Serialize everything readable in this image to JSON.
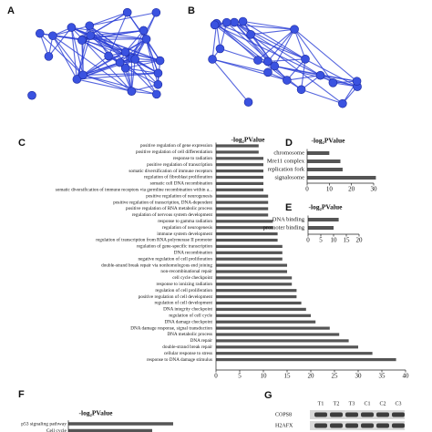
{
  "networks": [
    {
      "panel_label": "A"
    },
    {
      "panel_label": "B"
    }
  ],
  "chart_data": [
    {
      "type": "hbar",
      "panel_label": "C",
      "title": "-log₂PValue",
      "categories": [
        "positive regulation of gene expression",
        "positive regulation of cell differentiation",
        "response to radiation",
        "positive regulation of transcription",
        "somatic diversification of immune receptors",
        "regulation of fibroblast proliferation",
        "somatic cell DNA recombination",
        "somatic diversification of immune receptors via germline recombination within a...",
        "positive regulation of neurogenesis",
        "positive regulation of transcription, DNA-dependent",
        "positive regulation of RNA metabolic process",
        "regulation of nervous system development",
        "response to gamma radiation",
        "regulation of neurogenesis",
        "immune system development",
        "regulation of transcription from RNA polymerase II promoter",
        "regulation of gene-specific transcription",
        "DNA recombination",
        "negative regulation of cell proliferation",
        "double-strand break repair via nonhomologous end joining",
        "non-recombinational repair",
        "cell cycle checkpoint",
        "response to ionizing radiation",
        "regulation of cell proliferation",
        "positive regulation of cell development",
        "regulation of cell development",
        "DNA integrity checkpoint",
        "regulation of cell cycle",
        "DNA damage checkpoint",
        "DNA damage response, signal transduction",
        "DNA metabolic process",
        "DNA repair",
        "double-strand break repair",
        "cellular response to stress",
        "response to DNA damage stimulus"
      ],
      "values": [
        9,
        9,
        10,
        10,
        10,
        10,
        10,
        10,
        11,
        11,
        11,
        11,
        12,
        12,
        13,
        13,
        14,
        14,
        14,
        15,
        15,
        16,
        16,
        17,
        17,
        18,
        19,
        20,
        21,
        24,
        26,
        28,
        30,
        33,
        38
      ],
      "color": "#555555",
      "xlim": [
        0,
        40
      ],
      "xticks": [
        0,
        5,
        10,
        15,
        20,
        25,
        30,
        35,
        40
      ]
    },
    {
      "type": "hbar",
      "panel_label": "D",
      "title": "-log₂PValue",
      "categories": [
        "chromosome",
        "Mre11 complex",
        "replication fork",
        "signalosome"
      ],
      "values": [
        10,
        15,
        16,
        31
      ],
      "color": "#555555",
      "xlim": [
        0,
        30
      ],
      "xticks": [
        0,
        10,
        20,
        30
      ]
    },
    {
      "type": "hbar",
      "panel_label": "E",
      "title": "-log₂PValue",
      "categories": [
        "DNA binding",
        "promoter binding"
      ],
      "values": [
        12,
        10
      ],
      "color": "#555555",
      "xlim": [
        0,
        20
      ],
      "xticks": [
        0,
        5,
        10,
        15,
        20
      ]
    },
    {
      "type": "hbar",
      "panel_label": "F",
      "title": "-log₂PValue",
      "categories": [
        "p53 signaling pathway",
        "Cell cycle"
      ],
      "values": [
        10,
        8
      ],
      "color": "#555555",
      "xlim": [
        0,
        20
      ],
      "xticks": []
    }
  ],
  "blot": {
    "panel_label": "G",
    "lanes": [
      "T1",
      "T2",
      "T3",
      "C1",
      "C2",
      "C3"
    ],
    "rows": [
      "COPS8",
      "H2AFX"
    ]
  }
}
